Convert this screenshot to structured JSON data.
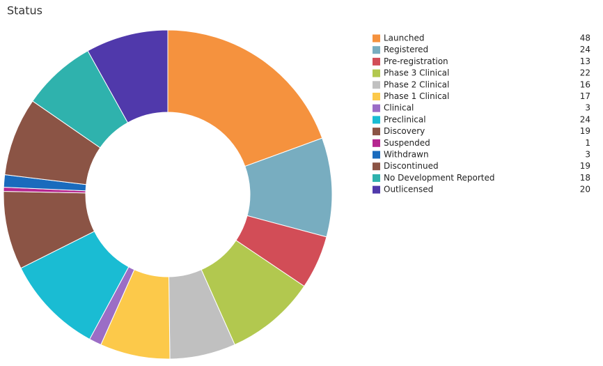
{
  "chart_data": {
    "type": "donut",
    "title": "Status",
    "categories": [
      "Launched",
      "Registered",
      "Pre-registration",
      "Phase 3 Clinical",
      "Phase 2 Clinical",
      "Phase 1 Clinical",
      "Clinical",
      "Preclinical",
      "Discovery",
      "Suspended",
      "Withdrawn",
      "Discontinued",
      "No Development Reported",
      "Outlicensed"
    ],
    "values": [
      48,
      24,
      13,
      22,
      16,
      17,
      3,
      24,
      19,
      1,
      3,
      19,
      18,
      20
    ],
    "colors": [
      "#f5923e",
      "#78adc0",
      "#d24d57",
      "#b2c84f",
      "#c0c0c0",
      "#fcc94a",
      "#9b6dc6",
      "#1abcd3",
      "#8b5445",
      "#b5268f",
      "#1a6bbd",
      "#8b5445",
      "#2fb2ad",
      "#5039ab"
    ]
  }
}
